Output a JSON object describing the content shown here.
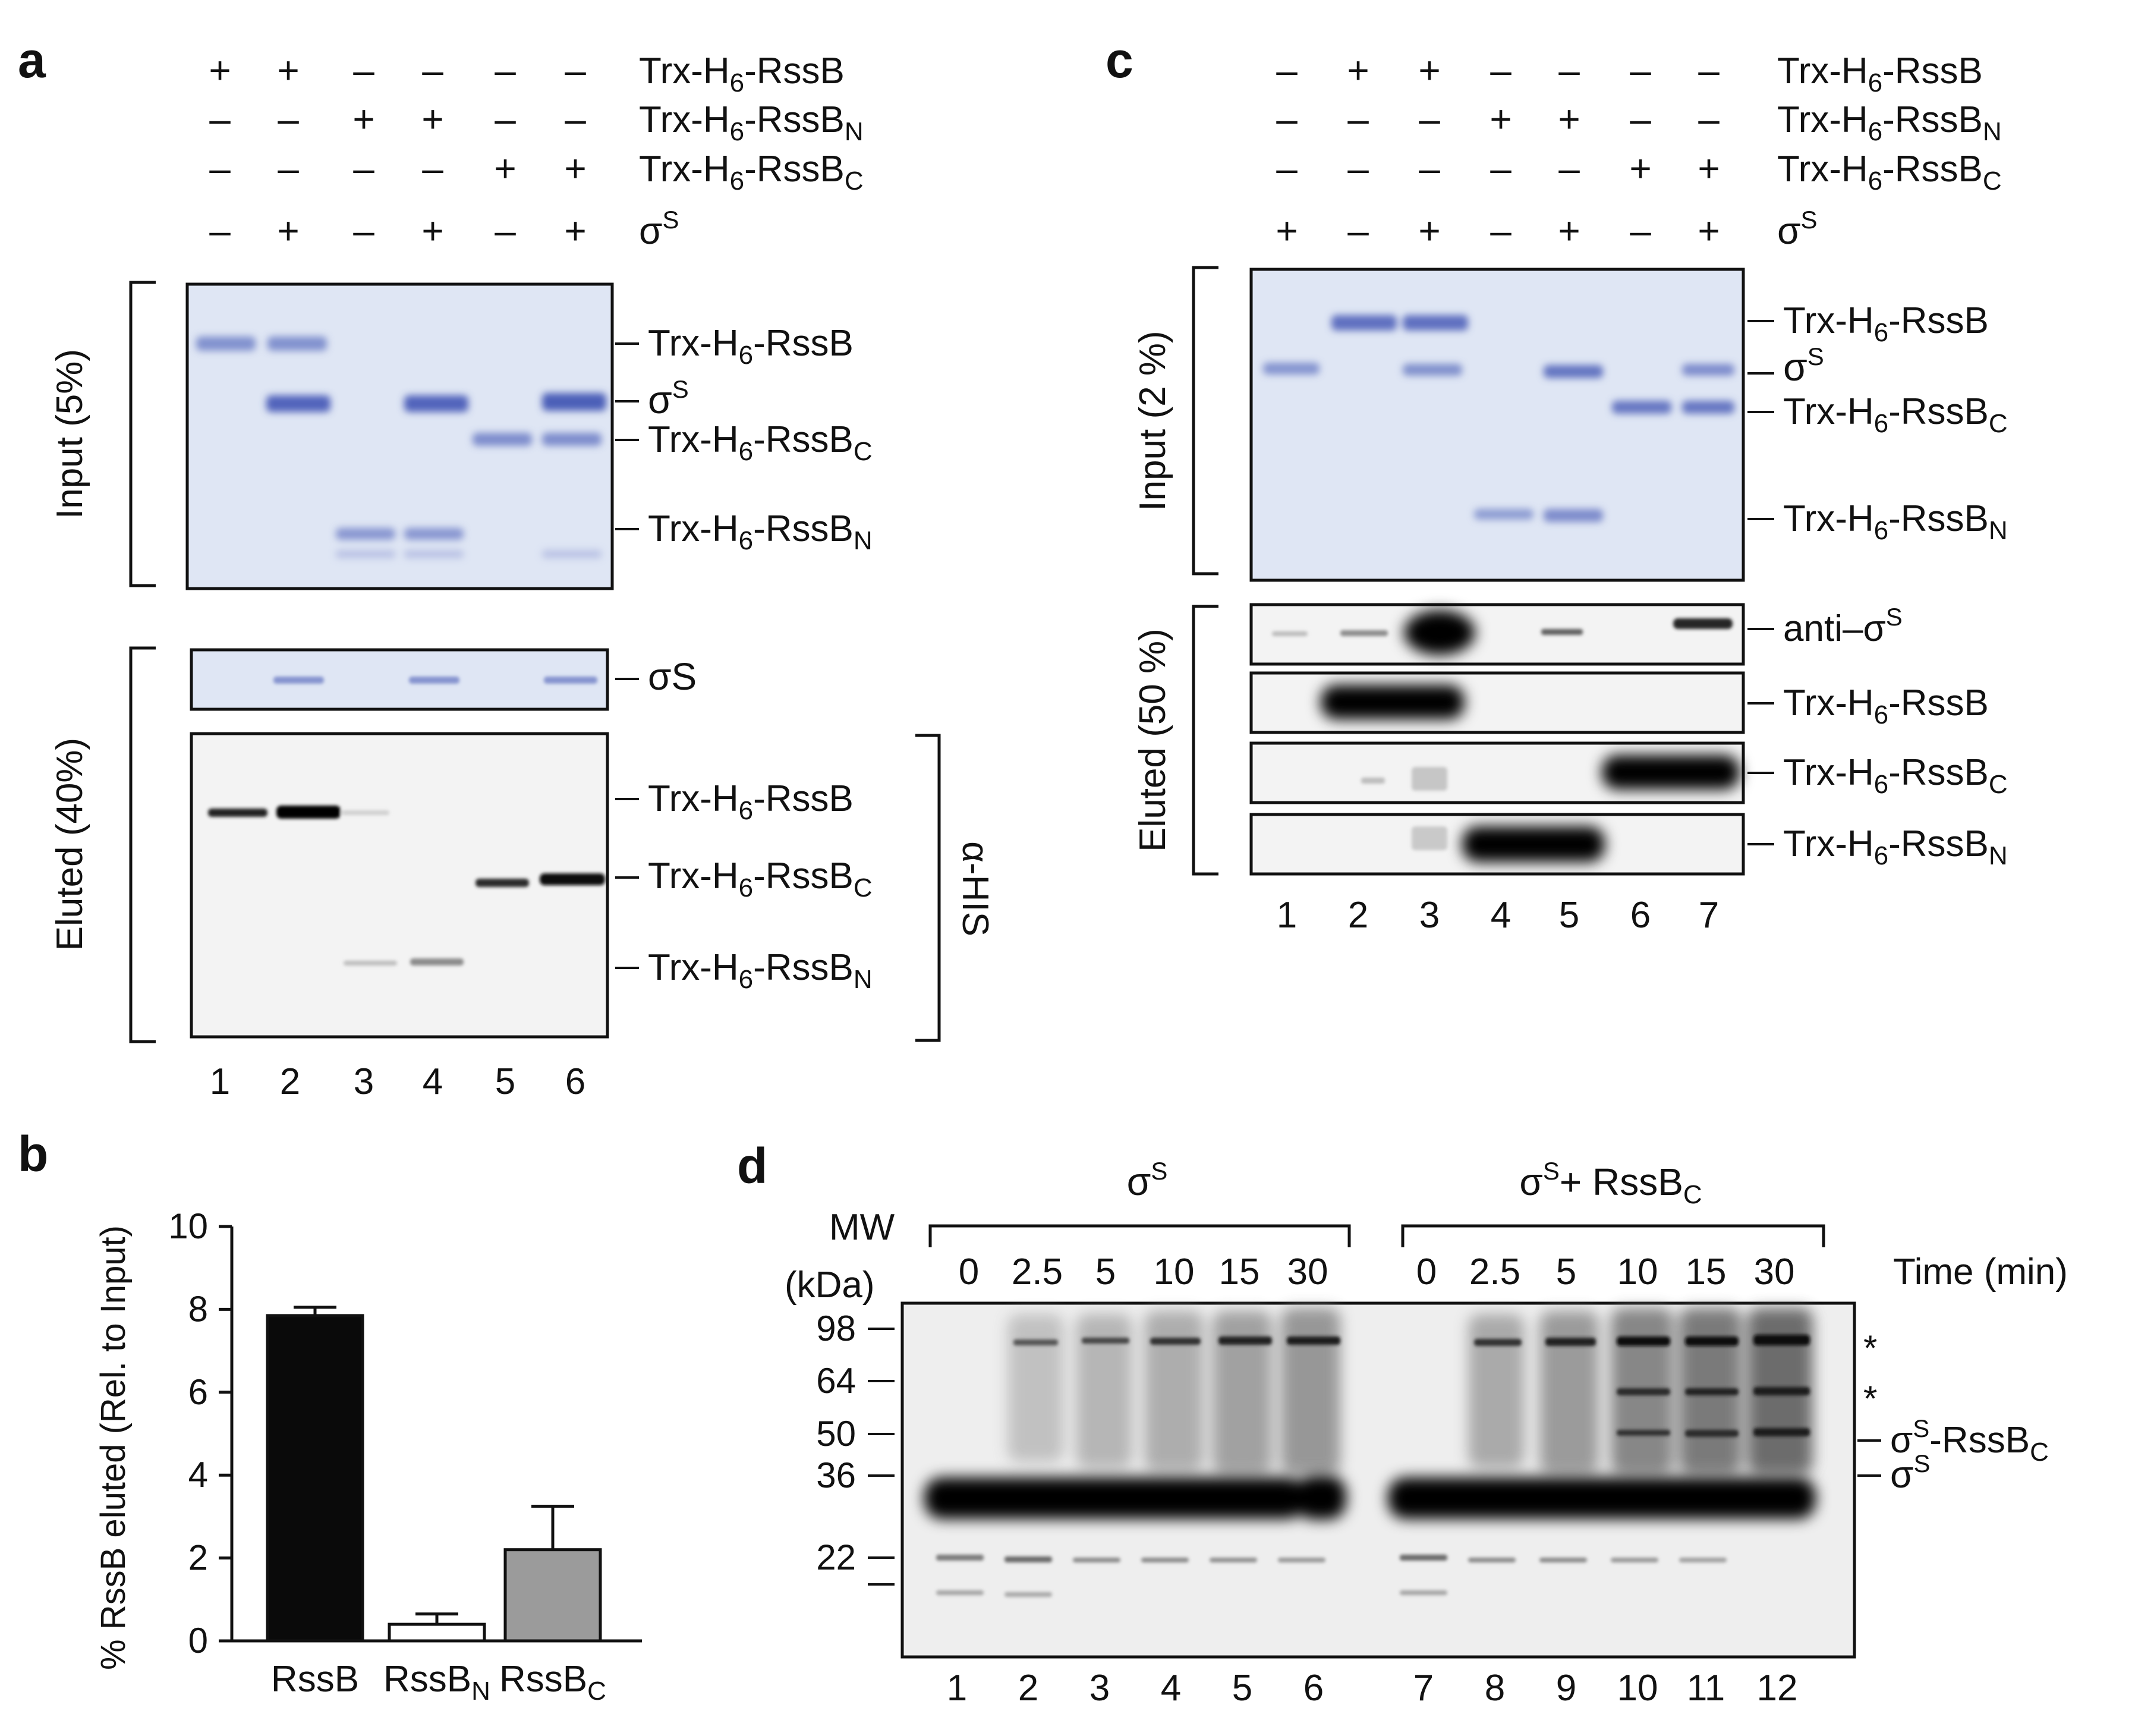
{
  "colors": {
    "coomassie_bg": "#dfe6f4",
    "coomassie_band": "#5d6fc0",
    "blot_bg": "#f1f1f1",
    "blot_band": "#0d0d0d",
    "ink": "#111111",
    "bar_rssb": "#0a0a0a",
    "bar_rssbn": "#ffffff",
    "bar_rssbc": "#9b9b9b"
  },
  "panel_a": {
    "label": "a",
    "rows": [
      {
        "name": "Trx-H6-RssB",
        "base": "Trx-H",
        "sub": "6",
        "mid": "-RssB",
        "tail": "",
        "signs": [
          "+",
          "+",
          "–",
          "–",
          "–",
          "–"
        ]
      },
      {
        "name": "Trx-H6-RssBN",
        "base": "Trx-H",
        "sub": "6",
        "mid": "-RssB",
        "tail": "N",
        "signs": [
          "–",
          "–",
          "+",
          "+",
          "–",
          "–"
        ]
      },
      {
        "name": "Trx-H6-RssBC",
        "base": "Trx-H",
        "sub": "6",
        "mid": "-RssB",
        "tail": "C",
        "signs": [
          "–",
          "–",
          "–",
          "–",
          "+",
          "+"
        ]
      },
      {
        "name": "sigmaS",
        "base": "σ",
        "sup": "S",
        "signs": [
          "–",
          "+",
          "–",
          "+",
          "–",
          "+"
        ]
      }
    ],
    "input_label": "Input (5%)",
    "eluted_label": "Eluted (40%)",
    "antibody_label": "α-HIS",
    "lanes": [
      "1",
      "2",
      "3",
      "4",
      "5",
      "6"
    ],
    "input_bands": {
      "rssb": "Trx-H6-RssB",
      "sigma": "σS",
      "rssbc": "Trx-H6-RssBC",
      "rssbn": "Trx-H6-RssBN"
    },
    "eluted_bands": {
      "sigma": "σS",
      "rssb": "Trx-H6-RssB",
      "rssbc": "Trx-H6-RssBC",
      "rssbn": "Trx-H6-RssBN"
    }
  },
  "panel_b": {
    "label": "b",
    "chart_data": {
      "type": "bar",
      "categories": [
        "RssB",
        "RssBN",
        "RssBC"
      ],
      "category_base": [
        "RssB",
        "RssB",
        "RssB"
      ],
      "category_sub": [
        "",
        "N",
        "C"
      ],
      "values": [
        7.85,
        0.4,
        2.2
      ],
      "errors": [
        0.2,
        0.25,
        1.05
      ],
      "ylabel": "% RssB eluted (Rel. to Input)",
      "ylim": [
        0,
        10
      ],
      "yticks": [
        "0",
        "2",
        "4",
        "6",
        "8",
        "10"
      ]
    }
  },
  "panel_c": {
    "label": "c",
    "rows": [
      {
        "name": "Trx-H6-RssB",
        "base": "Trx-H",
        "sub": "6",
        "mid": "-RssB",
        "tail": "",
        "signs": [
          "–",
          "+",
          "+",
          "–",
          "–",
          "–",
          "–"
        ]
      },
      {
        "name": "Trx-H6-RssBN",
        "base": "Trx-H",
        "sub": "6",
        "mid": "-RssB",
        "tail": "N",
        "signs": [
          "–",
          "–",
          "–",
          "+",
          "+",
          "–",
          "–"
        ]
      },
      {
        "name": "Trx-H6-RssBC",
        "base": "Trx-H",
        "sub": "6",
        "mid": "-RssB",
        "tail": "C",
        "signs": [
          "–",
          "–",
          "–",
          "–",
          "–",
          "+",
          "+"
        ]
      },
      {
        "name": "sigmaS",
        "base": "σ",
        "sup": "S",
        "signs": [
          "+",
          "–",
          "+",
          "–",
          "+",
          "–",
          "+"
        ]
      }
    ],
    "input_label": "Input (2 %)",
    "eluted_label": "Eluted (50 %)",
    "anti_sigma_label": "anti–σS",
    "lanes": [
      "1",
      "2",
      "3",
      "4",
      "5",
      "6",
      "7"
    ]
  },
  "panel_d": {
    "label": "d",
    "group1": "σS",
    "group2": "σS+ RssBC",
    "mw_label": "MW",
    "kda_label": "(kDa)",
    "time_label": "Time (min)",
    "times": [
      "0",
      "2.5",
      "5",
      "10",
      "15",
      "30",
      "0",
      "2.5",
      "5",
      "10",
      "15",
      "30"
    ],
    "markers": [
      "98",
      "64",
      "50",
      "36",
      "22"
    ],
    "lanes": [
      "1",
      "2",
      "3",
      "4",
      "5",
      "6",
      "7",
      "8",
      "9",
      "10",
      "11",
      "12"
    ],
    "right_labels": {
      "star1": "*",
      "star2": "*",
      "complex": "σS-RssBC",
      "sigma": "σS"
    }
  }
}
